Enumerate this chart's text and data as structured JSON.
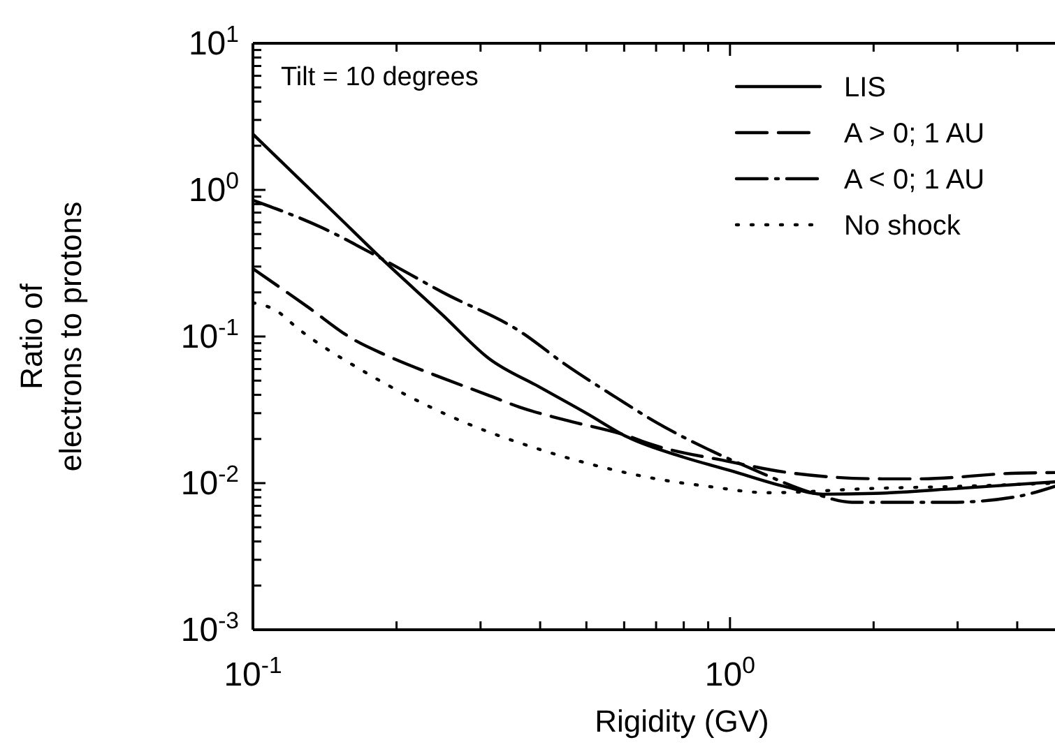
{
  "chart_data": {
    "type": "line",
    "xlabel": "Rigidity (GV)",
    "ylabel": "Ratio of\nelectrons to protons",
    "log": "xy",
    "legend": "top right",
    "annotations": [
      "Tilt = 10 degrees"
    ],
    "xlim": [
      0.1,
      4.8
    ],
    "ylim": [
      0.001,
      10
    ],
    "xticks": [
      {
        "value": 0.1,
        "label": "10$^{-1}$"
      },
      {
        "value": 0.2,
        "label": null
      },
      {
        "value": 0.3,
        "label": null
      },
      {
        "value": 0.4,
        "label": null
      },
      {
        "value": 0.5,
        "label": null
      },
      {
        "value": 0.6,
        "label": null
      },
      {
        "value": 0.7,
        "label": null
      },
      {
        "value": 0.8,
        "label": null
      },
      {
        "value": 0.9,
        "label": null
      },
      {
        "value": 1,
        "label": "10$^{0}$"
      },
      {
        "value": 2,
        "label": null
      },
      {
        "value": 3,
        "label": null
      },
      {
        "value": 4,
        "label": null
      }
    ],
    "yticks": [
      {
        "value": 0.001,
        "label": "10$^{-3}$"
      },
      {
        "value": 0.002,
        "label": null
      },
      {
        "value": 0.003,
        "label": null
      },
      {
        "value": 0.004,
        "label": null
      },
      {
        "value": 0.005,
        "label": null
      },
      {
        "value": 0.006,
        "label": null
      },
      {
        "value": 0.007,
        "label": null
      },
      {
        "value": 0.008,
        "label": null
      },
      {
        "value": 0.009,
        "label": null
      },
      {
        "value": 0.01,
        "label": "10$^{-2}$"
      },
      {
        "value": 0.02,
        "label": null
      },
      {
        "value": 0.03,
        "label": null
      },
      {
        "value": 0.04,
        "label": null
      },
      {
        "value": 0.05,
        "label": null
      },
      {
        "value": 0.06,
        "label": null
      },
      {
        "value": 0.07,
        "label": null
      },
      {
        "value": 0.08,
        "label": null
      },
      {
        "value": 0.09,
        "label": null
      },
      {
        "value": 0.1,
        "label": "10$^{-1}$"
      },
      {
        "value": 0.2,
        "label": null
      },
      {
        "value": 0.3,
        "label": null
      },
      {
        "value": 0.4,
        "label": null
      },
      {
        "value": 0.5,
        "label": null
      },
      {
        "value": 0.6,
        "label": null
      },
      {
        "value": 0.7,
        "label": null
      },
      {
        "value": 0.8,
        "label": null
      },
      {
        "value": 0.9,
        "label": null
      },
      {
        "value": 1,
        "label": "10$^{0}$"
      },
      {
        "value": 2,
        "label": null
      },
      {
        "value": 3,
        "label": null
      },
      {
        "value": 4,
        "label": null
      },
      {
        "value": 5,
        "label": null
      },
      {
        "value": 6,
        "label": null
      },
      {
        "value": 7,
        "label": null
      },
      {
        "value": 8,
        "label": null
      },
      {
        "value": 9,
        "label": null
      },
      {
        "value": 10,
        "label": "10$^{1}$"
      }
    ],
    "series": [
      {
        "name": "LIS",
        "color": "#000000",
        "line_style": "solid",
        "x": [
          0.1,
          0.15,
          0.186,
          0.25,
          0.312,
          0.4,
          0.5,
          0.61,
          0.8,
          1,
          1.3,
          1.57,
          2,
          3,
          4.8
        ],
        "values": [
          2.4,
          0.67,
          0.34,
          0.14,
          0.071,
          0.045,
          0.03,
          0.0206,
          0.015,
          0.0122,
          0.0095,
          0.0084,
          0.0085,
          0.0092,
          0.0102
        ]
      },
      {
        "name": "A > 0; 1 AU",
        "color": "#000000",
        "line_style": "dashed",
        "x": [
          0.1,
          0.13,
          0.162,
          0.191,
          0.25,
          0.31,
          0.362,
          0.45,
          0.61,
          0.68,
          1,
          1.3,
          2.08,
          2.5,
          4,
          4.8
        ],
        "values": [
          0.29,
          0.16,
          0.096,
          0.074,
          0.052,
          0.04,
          0.033,
          0.027,
          0.021,
          0.0185,
          0.014,
          0.0119,
          0.0107,
          0.0107,
          0.0117,
          0.0118
        ]
      },
      {
        "name": "A < 0; 1 AU",
        "color": "#000000",
        "line_style": "dashdot",
        "x": [
          0.1,
          0.14,
          0.186,
          0.25,
          0.365,
          0.45,
          0.58,
          0.7,
          0.9,
          1.1,
          1.5,
          1.8,
          2.5,
          2.9,
          4,
          4.8
        ],
        "values": [
          0.85,
          0.55,
          0.34,
          0.2,
          0.107,
          0.065,
          0.038,
          0.026,
          0.017,
          0.0127,
          0.0085,
          0.0074,
          0.0074,
          0.0074,
          0.0081,
          0.0095
        ]
      },
      {
        "name": "No shock",
        "color": "#000000",
        "line_style": "dotted",
        "x": [
          0.1,
          0.112,
          0.124,
          0.172,
          0.263,
          0.408,
          0.565,
          0.7,
          0.9,
          1.2,
          2,
          3,
          4.8
        ],
        "values": [
          0.17,
          0.15,
          0.114,
          0.057,
          0.028,
          0.0166,
          0.0124,
          0.0107,
          0.0095,
          0.0086,
          0.0092,
          0.0095,
          0.01
        ]
      }
    ]
  }
}
